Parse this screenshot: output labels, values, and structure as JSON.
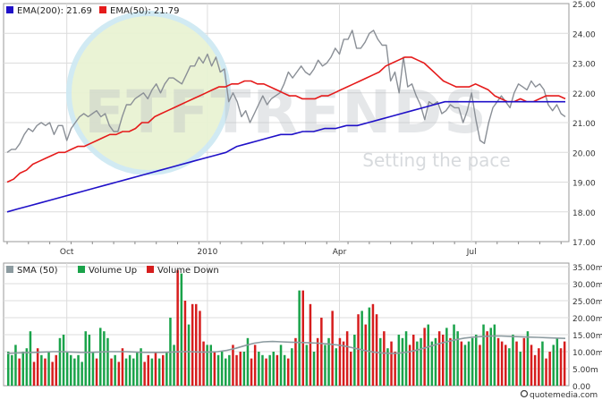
{
  "colors": {
    "price": "#8a8f96",
    "ema200": "#1f10c8",
    "ema50": "#e51b1b",
    "volume_up": "#1aa34a",
    "volume_down": "#d61d1d",
    "sma50": "#8c9ba0",
    "grid": "#dcdcdc",
    "frame": "#9a9a9a",
    "watermark": "#b7bcc2"
  },
  "watermark": {
    "brand": "ETFTRENDS",
    "tagline": "Setting the pace"
  },
  "footer": {
    "credit": "quotemedia.com"
  },
  "chart_data": [
    {
      "type": "line",
      "legend": [
        {
          "label": "EMA(200): 21.69",
          "color": "#1f10c8"
        },
        {
          "label": "EMA(50): 21.79",
          "color": "#e51b1b"
        }
      ],
      "x_tick_labels": [
        "Oct",
        "2010",
        "Apr",
        "Jul"
      ],
      "x_tick_index": [
        14,
        47,
        78,
        109
      ],
      "y_tick_labels": [
        "17.00",
        "18.00",
        "19.00",
        "20.00",
        "21.00",
        "22.00",
        "23.00",
        "24.00",
        "25.00"
      ],
      "ylim": [
        17,
        25
      ],
      "grid": true,
      "series": [
        {
          "name": "",
          "role": "price",
          "values": [
            20.0,
            20.1,
            20.1,
            20.3,
            20.6,
            20.8,
            20.7,
            20.9,
            21.0,
            20.9,
            21.0,
            20.6,
            20.9,
            20.9,
            20.4,
            20.8,
            21.0,
            21.2,
            21.3,
            21.2,
            21.3,
            21.4,
            21.2,
            21.3,
            20.9,
            20.7,
            20.7,
            21.2,
            21.6,
            21.6,
            21.8,
            21.9,
            22.0,
            21.8,
            22.1,
            22.3,
            22.0,
            22.3,
            22.5,
            22.5,
            22.4,
            22.3,
            22.6,
            22.9,
            22.9,
            23.2,
            23.0,
            23.3,
            22.9,
            23.2,
            22.7,
            22.8,
            21.7,
            22.0,
            21.7,
            21.2,
            21.4,
            21.0,
            21.3,
            21.6,
            21.9,
            21.6,
            21.8,
            21.9,
            22.0,
            22.3,
            22.7,
            22.5,
            22.7,
            22.9,
            22.7,
            22.6,
            22.8,
            23.1,
            22.9,
            23.0,
            23.2,
            23.5,
            23.3,
            23.8,
            23.8,
            24.1,
            23.5,
            23.5,
            23.7,
            24.0,
            24.1,
            23.8,
            23.6,
            23.6,
            22.4,
            22.7,
            22.0,
            23.2,
            22.2,
            22.3,
            21.9,
            21.6,
            21.1,
            21.7,
            21.6,
            21.7,
            21.3,
            21.4,
            21.6,
            21.5,
            21.5,
            21.0,
            21.4,
            22.0,
            21.1,
            20.4,
            20.3,
            21.0,
            21.5,
            21.7,
            21.9,
            21.7,
            21.5,
            22.0,
            22.3,
            22.2,
            22.1,
            22.4,
            22.2,
            22.3,
            22.1,
            21.6,
            21.4,
            21.6,
            21.3,
            21.2
          ]
        },
        {
          "name": "EMA(50)",
          "role": "ema50",
          "values": [
            19.0,
            19.1,
            19.3,
            19.4,
            19.6,
            19.7,
            19.8,
            19.9,
            20.0,
            20.0,
            20.1,
            20.2,
            20.2,
            20.3,
            20.4,
            20.5,
            20.6,
            20.6,
            20.7,
            20.7,
            20.8,
            21.0,
            21.0,
            21.2,
            21.3,
            21.4,
            21.5,
            21.6,
            21.7,
            21.8,
            21.9,
            22.0,
            22.1,
            22.2,
            22.2,
            22.3,
            22.3,
            22.4,
            22.4,
            22.3,
            22.3,
            22.2,
            22.1,
            22.0,
            21.9,
            21.9,
            21.8,
            21.8,
            21.8,
            21.9,
            21.9,
            22.0,
            22.1,
            22.2,
            22.3,
            22.4,
            22.5,
            22.6,
            22.7,
            22.9,
            23.0,
            23.1,
            23.2,
            23.2,
            23.1,
            23.0,
            22.8,
            22.6,
            22.4,
            22.3,
            22.2,
            22.2,
            22.2,
            22.3,
            22.2,
            22.1,
            21.9,
            21.8,
            21.7,
            21.7,
            21.8,
            21.7,
            21.7,
            21.8,
            21.9,
            21.9,
            21.9,
            21.8
          ]
        },
        {
          "name": "EMA(200)",
          "role": "ema200",
          "values": [
            18.0,
            18.1,
            18.2,
            18.3,
            18.4,
            18.5,
            18.6,
            18.7,
            18.8,
            18.9,
            19.0,
            19.1,
            19.2,
            19.3,
            19.4,
            19.5,
            19.6,
            19.7,
            19.8,
            19.9,
            20.0,
            20.2,
            20.3,
            20.4,
            20.5,
            20.6,
            20.6,
            20.7,
            20.7,
            20.8,
            20.8,
            20.9,
            20.9,
            21.0,
            21.1,
            21.2,
            21.3,
            21.4,
            21.5,
            21.6,
            21.7,
            21.7,
            21.7,
            21.7,
            21.7,
            21.7,
            21.7,
            21.7,
            21.7,
            21.7,
            21.7,
            21.7
          ]
        }
      ]
    },
    {
      "type": "bar",
      "legend": [
        {
          "label": "SMA (50)",
          "color": "#8c9ba0"
        },
        {
          "label": "Volume Up",
          "color": "#1aa34a"
        },
        {
          "label": "Volume Down",
          "color": "#d61d1d"
        }
      ],
      "y_tick_labels": [
        "0.00",
        "5.00m",
        "10.00m",
        "15.00m",
        "20.00m",
        "25.00m",
        "30.00m",
        "35.00m"
      ],
      "ylim": [
        0,
        35
      ],
      "units": "millions",
      "volume_up": [
        true,
        true,
        true,
        false,
        true,
        true,
        true,
        false,
        false,
        true,
        false,
        true,
        false,
        false,
        true,
        true,
        true,
        true,
        true,
        true,
        true,
        true,
        true,
        true,
        false,
        true,
        true,
        true,
        false,
        true,
        false,
        false,
        true,
        true,
        true,
        true,
        true,
        false,
        false,
        true,
        false,
        true,
        false,
        true,
        true,
        true,
        false,
        true,
        false,
        true,
        false,
        false,
        false,
        false,
        true,
        true,
        false,
        true,
        true,
        true,
        true,
        false,
        false,
        false,
        true,
        true,
        false,
        false,
        true,
        true,
        false,
        true,
        true,
        false,
        true,
        true,
        false,
        true,
        false,
        true,
        false,
        true,
        false,
        true,
        false,
        false,
        true,
        true,
        false,
        true,
        false,
        false,
        false,
        false,
        true,
        false,
        true,
        false,
        true,
        false,
        false,
        true,
        false,
        true,
        false,
        false,
        true,
        true,
        true,
        false,
        false,
        true,
        true,
        false,
        true,
        true,
        true,
        false,
        false,
        true,
        false,
        true,
        true,
        false,
        true,
        true,
        true,
        true,
        false,
        true,
        false,
        true,
        true,
        false,
        false,
        false,
        true,
        true,
        false,
        true,
        false,
        true,
        false,
        false,
        false,
        true,
        false,
        false,
        true,
        true,
        false,
        false
      ],
      "values": [
        10,
        9,
        12,
        8,
        10,
        11,
        16,
        7,
        11,
        9,
        8,
        10,
        7,
        9,
        14,
        15,
        10,
        9,
        8,
        9,
        7,
        16,
        15,
        10,
        8,
        17,
        16,
        14,
        8,
        9,
        7,
        11,
        8,
        9,
        8,
        10,
        11,
        7,
        9,
        8,
        10,
        8,
        9,
        10,
        20,
        12,
        34,
        33,
        25,
        18,
        24,
        24,
        22,
        13,
        12,
        12,
        10,
        9,
        10,
        8,
        9,
        12,
        9,
        10,
        10,
        14,
        8,
        12,
        10,
        9,
        8,
        9,
        10,
        9,
        12,
        9,
        8,
        11,
        14,
        28,
        28,
        12,
        24,
        10,
        14,
        20,
        12,
        14,
        22,
        11,
        14,
        13,
        16,
        10,
        15,
        21,
        22,
        18,
        23,
        24,
        21,
        14,
        16,
        11,
        13,
        10,
        15,
        14,
        16,
        12,
        15,
        13,
        14,
        17,
        18,
        13,
        14,
        16,
        15,
        17,
        14,
        18,
        16,
        13,
        12,
        13,
        14,
        15,
        12,
        18,
        16,
        17,
        18,
        14,
        13,
        12,
        11,
        15,
        13,
        10,
        14,
        16,
        12,
        9,
        11,
        13,
        8,
        10,
        12,
        14,
        11,
        13
      ],
      "sma50": [
        9.5,
        9.6,
        9.7,
        9.8,
        9.9,
        10.0,
        10.0,
        9.9,
        9.8,
        9.8,
        9.9,
        10.0,
        10.0,
        10.0,
        9.9,
        9.8,
        9.8,
        9.8,
        9.9,
        10.0,
        10.0,
        9.9,
        9.9,
        10.0,
        10.4,
        11.0,
        11.8,
        12.5,
        12.9,
        13.0,
        12.9,
        12.8,
        12.7,
        12.6,
        12.5,
        12.3,
        12.0,
        11.6,
        11.0,
        10.4,
        9.9,
        9.6,
        9.5,
        9.6,
        10.0,
        10.6,
        11.4,
        12.2,
        12.9,
        13.5,
        14.0,
        14.3,
        14.5,
        14.6,
        14.6,
        14.5,
        14.4,
        14.3,
        14.2,
        14.1,
        14.0,
        13.9
      ]
    }
  ]
}
